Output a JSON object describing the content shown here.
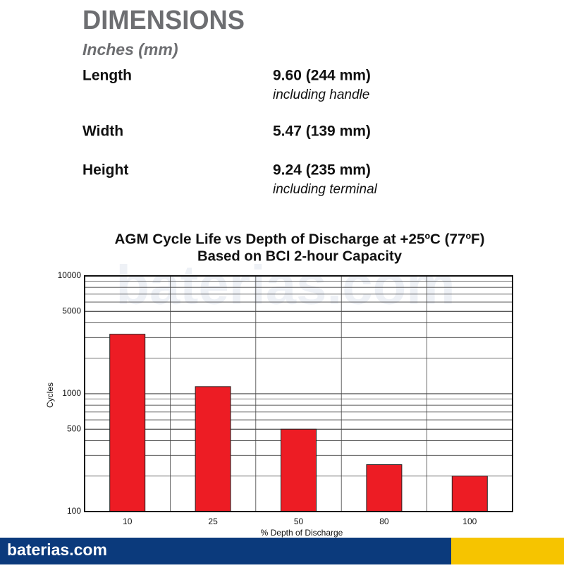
{
  "header": {
    "title": "DIMENSIONS",
    "subtitle": "Inches (mm)"
  },
  "dimensions": [
    {
      "label": "Length",
      "value": "9.60 (244 mm)",
      "note": "including handle"
    },
    {
      "label": "Width",
      "value": "5.47 (139 mm)"
    },
    {
      "label": "Height",
      "value": "9.24 (235 mm)",
      "note": "including terminal"
    }
  ],
  "chart_data": {
    "type": "bar",
    "title": [
      "AGM Cycle Life vs Depth of Discharge at +25ºC (77ºF)",
      "Based on BCI 2-hour Capacity"
    ],
    "watermark": "baterias.com",
    "x_label": "% Depth of Discharge",
    "y_label": "Cycles",
    "categories": [
      "10",
      "25",
      "50",
      "80",
      "100"
    ],
    "values": [
      3200,
      1150,
      500,
      250,
      200
    ],
    "color": "#ed1c24",
    "log_scale": true,
    "ylim": [
      100,
      10000
    ],
    "yticks": [
      100,
      500,
      1000,
      5000,
      10000
    ],
    "y_minor_gridlines": [
      200,
      300,
      400,
      600,
      700,
      800,
      900,
      2000,
      3000,
      4000,
      6000,
      7000,
      8000,
      9000
    ],
    "grid": true
  },
  "footer": {
    "brand": "baterias.com"
  }
}
